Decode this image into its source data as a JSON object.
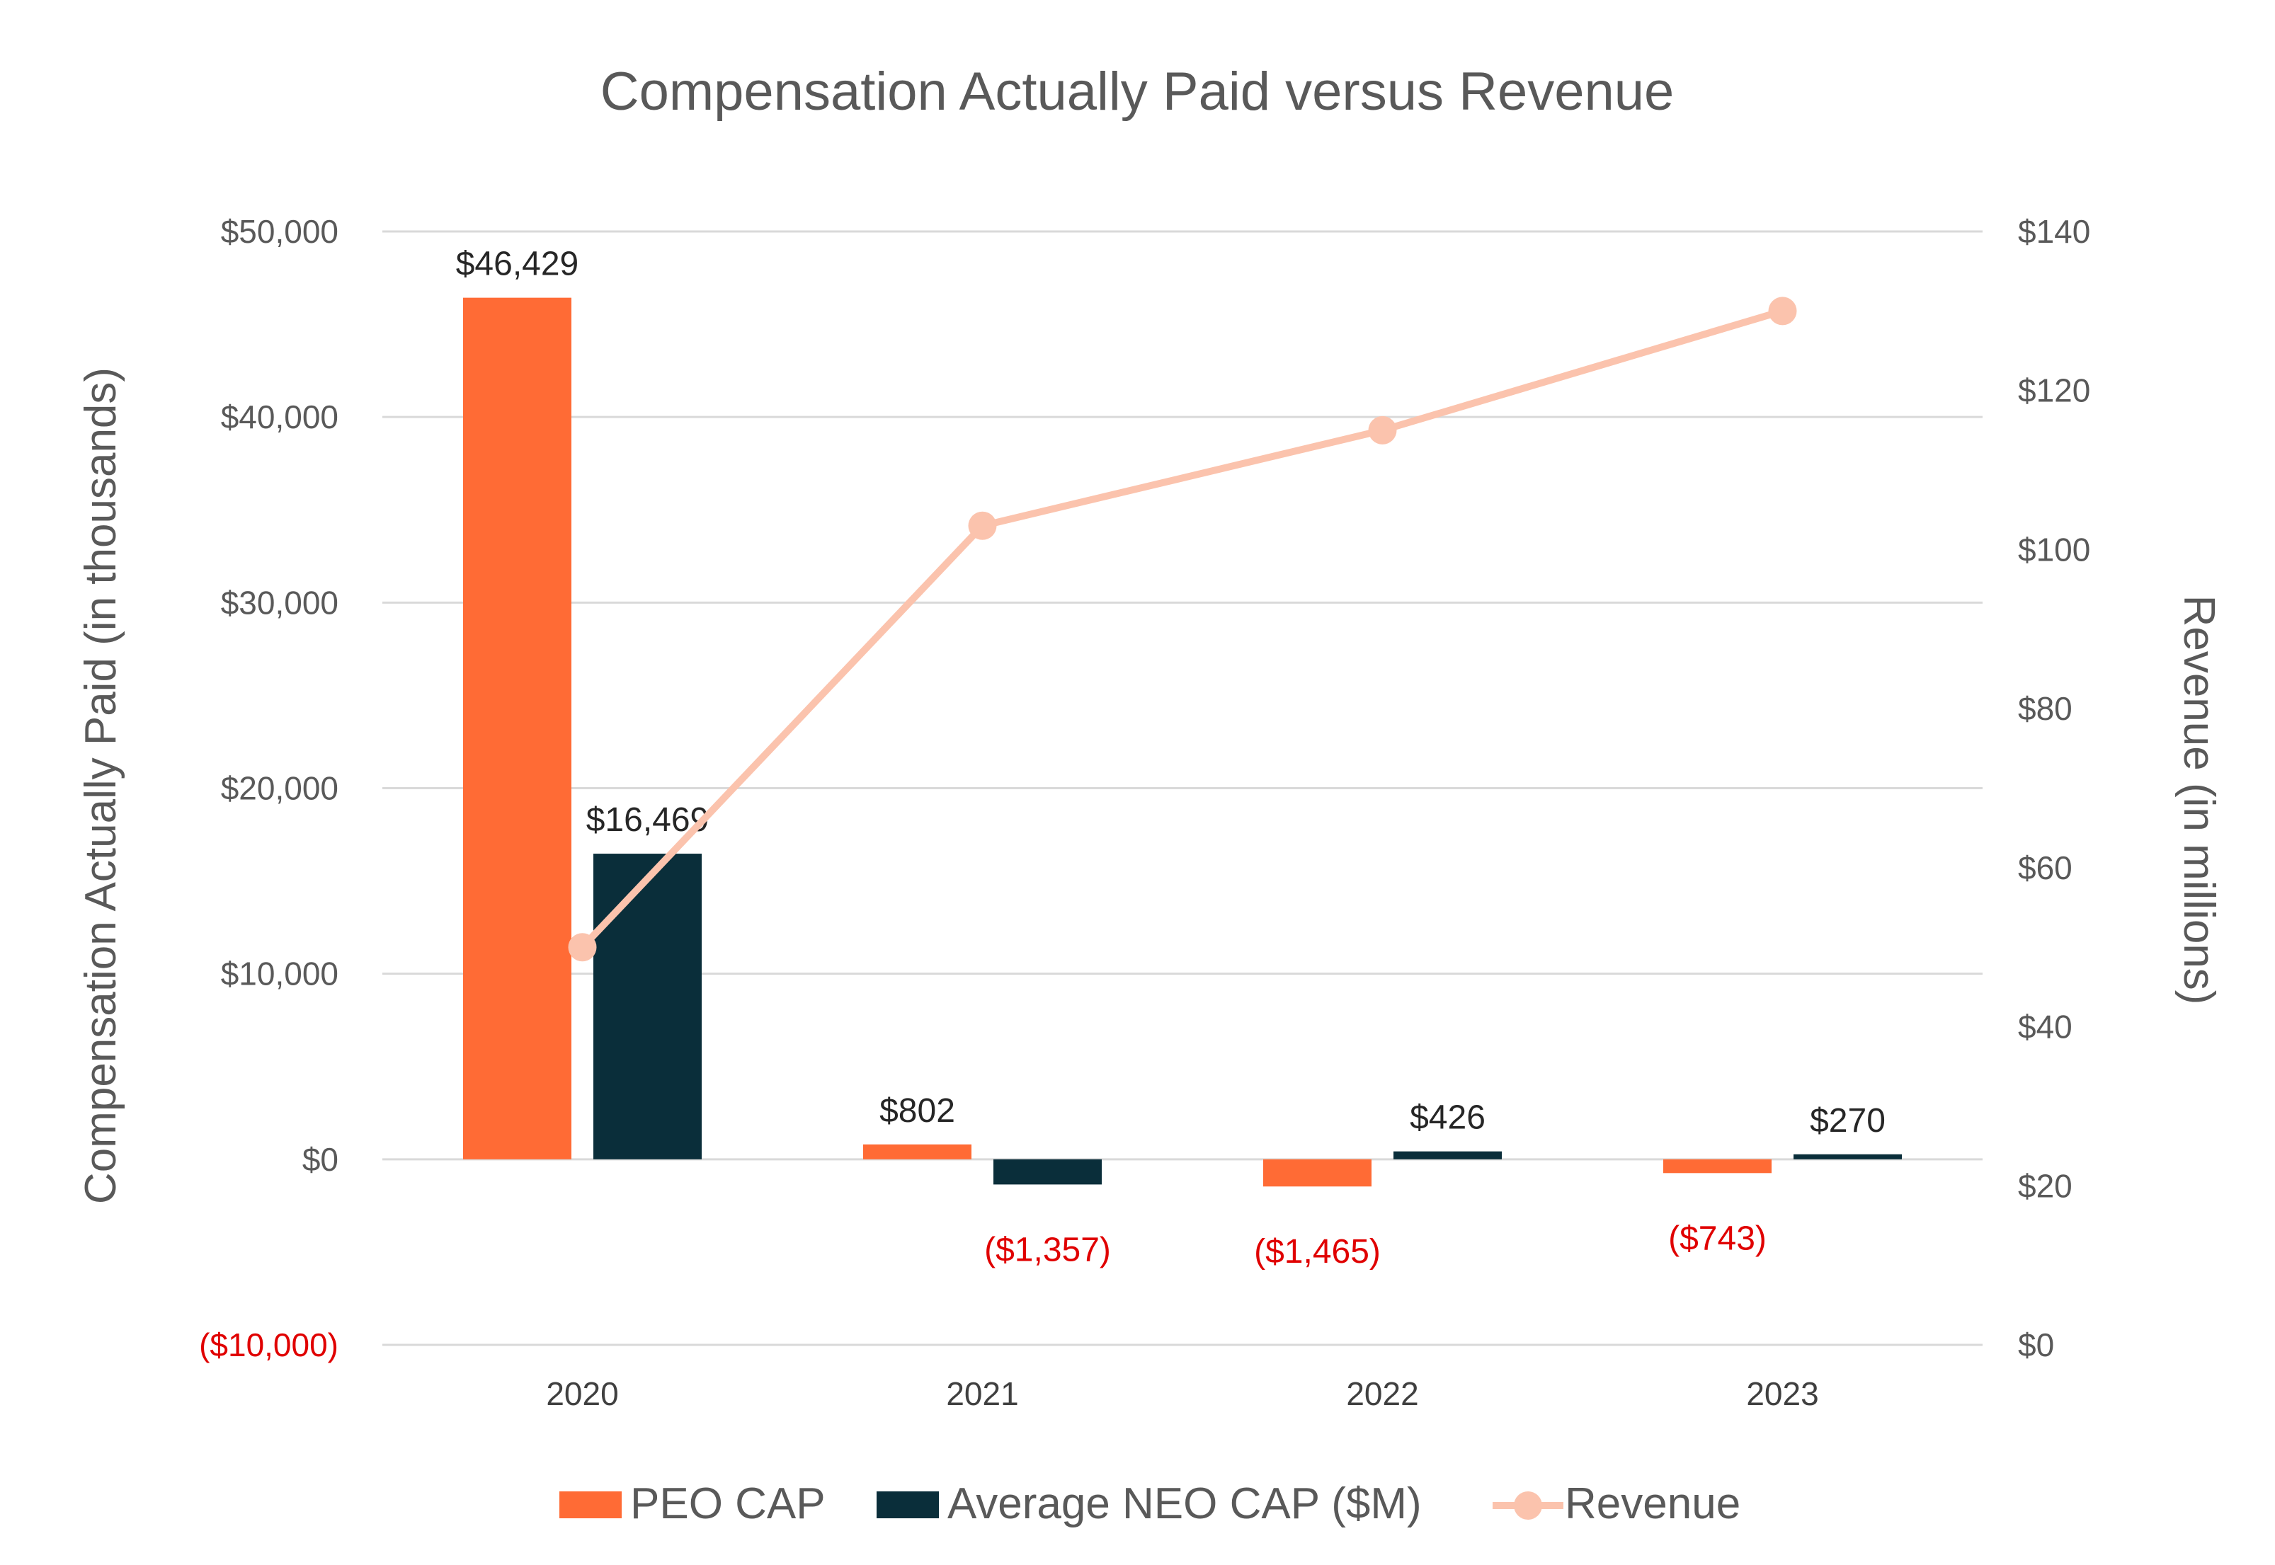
{
  "chart_data": {
    "type": "bar",
    "title": "Compensation Actually Paid versus Revenue",
    "categories": [
      "2020",
      "2021",
      "2022",
      "2023"
    ],
    "ylabel": "Compensation Actually Paid (in thousands)",
    "y2label": "Revenue (in millions)",
    "ylim": [
      -10000,
      50000
    ],
    "y2lim": [
      0,
      140
    ],
    "yticks": [
      "($10,000)",
      "$0",
      "$10,000",
      "$20,000",
      "$30,000",
      "$40,000",
      "$50,000"
    ],
    "ytick_values": [
      -10000,
      0,
      10000,
      20000,
      30000,
      40000,
      50000
    ],
    "y2ticks": [
      "$0",
      "$20",
      "$40",
      "$60",
      "$80",
      "$100",
      "$120",
      "$140"
    ],
    "y2tick_values": [
      0,
      20,
      40,
      60,
      80,
      100,
      120,
      140
    ],
    "grid": true,
    "legend_position": "bottom",
    "series": [
      {
        "name": "PEO CAP",
        "type": "bar",
        "axis": "left",
        "color": "#ff6b35",
        "values": [
          46429,
          802,
          -1465,
          -743
        ],
        "labels": [
          "$46,429",
          "$802",
          "($1,465)",
          "($743)"
        ]
      },
      {
        "name": "Average NEO CAP ($M)",
        "type": "bar",
        "axis": "left",
        "color": "#0a2e3a",
        "values": [
          16469,
          -1357,
          426,
          270
        ],
        "labels": [
          "$16,469",
          "($1,357)",
          "$426",
          "$270"
        ]
      },
      {
        "name": "Revenue",
        "type": "line",
        "axis": "right",
        "color": "#fbc3ad",
        "values": [
          50,
          103,
          115,
          130
        ]
      }
    ]
  }
}
